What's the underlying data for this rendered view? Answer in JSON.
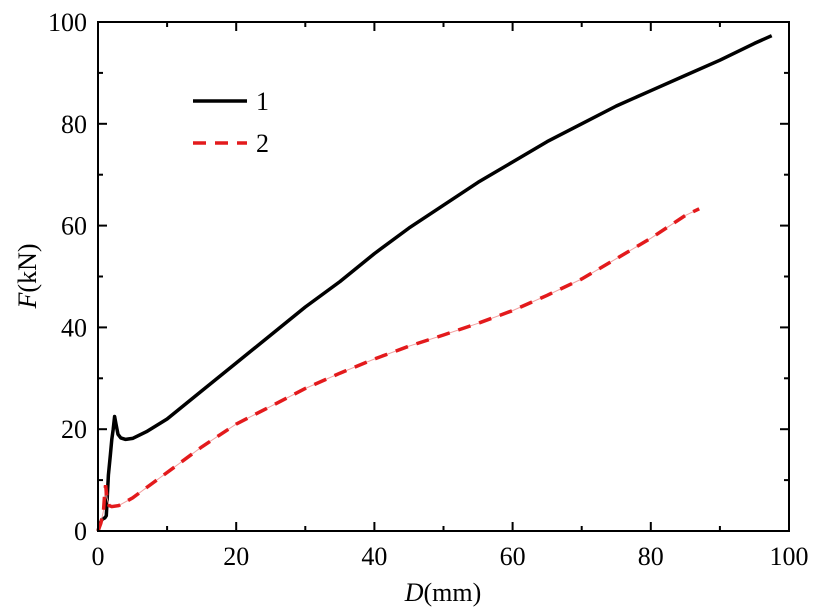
{
  "chart_data": {
    "type": "line",
    "xlabel": {
      "var": "D",
      "unit": "(mm)"
    },
    "ylabel": {
      "var": "F",
      "unit": "(kN)"
    },
    "xlim": [
      0,
      100
    ],
    "ylim": [
      0,
      100
    ],
    "x_ticks": [
      "0",
      "20",
      "40",
      "60",
      "80",
      "100"
    ],
    "y_ticks": [
      "0",
      "20",
      "40",
      "60",
      "80",
      "100"
    ],
    "grid": false,
    "legend_position": "top-left",
    "series": [
      {
        "name": "1",
        "color": "#000000",
        "style": "solid",
        "points": [
          [
            0,
            0
          ],
          [
            0.3,
            1.5
          ],
          [
            0.6,
            2.3
          ],
          [
            1.0,
            2.6
          ],
          [
            1.2,
            3.0
          ],
          [
            1.5,
            11
          ],
          [
            1.8,
            15
          ],
          [
            2.0,
            18
          ],
          [
            2.2,
            20
          ],
          [
            2.4,
            22.5
          ],
          [
            2.6,
            21
          ],
          [
            2.9,
            19
          ],
          [
            3.3,
            18.3
          ],
          [
            4,
            18
          ],
          [
            5,
            18.2
          ],
          [
            7,
            19.5
          ],
          [
            10,
            22
          ],
          [
            15,
            27.5
          ],
          [
            20,
            33
          ],
          [
            25,
            38.5
          ],
          [
            30,
            44
          ],
          [
            35,
            49
          ],
          [
            40,
            54.5
          ],
          [
            45,
            59.5
          ],
          [
            50,
            64
          ],
          [
            55,
            68.5
          ],
          [
            60,
            72.5
          ],
          [
            65,
            76.5
          ],
          [
            70,
            80
          ],
          [
            75,
            83.5
          ],
          [
            80,
            86.5
          ],
          [
            85,
            89.5
          ],
          [
            90,
            92.5
          ],
          [
            95,
            95.8
          ],
          [
            97.5,
            97.3
          ]
        ]
      },
      {
        "name": "2",
        "color": "#e31a1c",
        "style": "dashed",
        "points": [
          [
            0,
            0
          ],
          [
            0.4,
            1.5
          ],
          [
            0.8,
            4
          ],
          [
            1.0,
            8
          ],
          [
            1.1,
            9
          ],
          [
            1.3,
            6.5
          ],
          [
            1.6,
            5
          ],
          [
            2,
            4.8
          ],
          [
            3,
            5
          ],
          [
            5,
            6.5
          ],
          [
            8,
            9.5
          ],
          [
            10,
            11.5
          ],
          [
            15,
            16.5
          ],
          [
            20,
            21
          ],
          [
            25,
            24.5
          ],
          [
            30,
            28
          ],
          [
            35,
            31
          ],
          [
            40,
            33.8
          ],
          [
            45,
            36.3
          ],
          [
            50,
            38.5
          ],
          [
            55,
            40.8
          ],
          [
            60,
            43.3
          ],
          [
            65,
            46.3
          ],
          [
            70,
            49.5
          ],
          [
            75,
            53.5
          ],
          [
            80,
            57.5
          ],
          [
            85,
            62
          ],
          [
            87,
            63.3
          ]
        ]
      }
    ]
  }
}
